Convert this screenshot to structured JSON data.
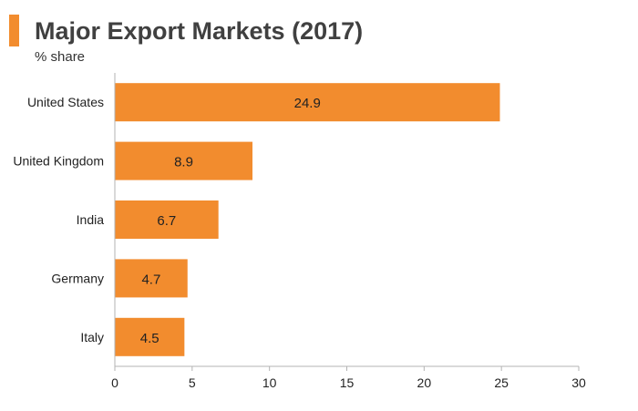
{
  "header": {
    "title": "Major Export Markets (2017)",
    "subtitle": "% share"
  },
  "colors": {
    "accent": "#f28c2e",
    "bar": "#f28c2e",
    "axis": "#b3b3b3"
  },
  "chart_data": {
    "type": "bar",
    "orientation": "horizontal",
    "title": "Major Export Markets (2017)",
    "subtitle": "% share",
    "xlabel": "",
    "ylabel": "",
    "categories": [
      "United States",
      "United Kingdom",
      "India",
      "Germany",
      "Italy"
    ],
    "values": [
      24.9,
      8.9,
      6.7,
      4.7,
      4.5
    ],
    "data_labels": [
      "24.9",
      "8.9",
      "6.7",
      "4.7",
      "4.5"
    ],
    "xlim": [
      0,
      30
    ],
    "xticks": [
      0,
      5,
      10,
      15,
      20,
      25,
      30
    ],
    "xtick_labels": [
      "0",
      "5",
      "10",
      "15",
      "20",
      "25",
      "30"
    ],
    "grid": false,
    "legend": "none"
  }
}
